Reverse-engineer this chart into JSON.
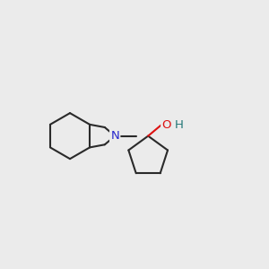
{
  "background_color": "#ebebeb",
  "bond_color": "#2a2a2a",
  "N_color": "#2626cc",
  "O_color": "#dd1111",
  "H_color": "#227777",
  "bond_width": 1.5,
  "xlim": [
    0,
    10
  ],
  "ylim": [
    1,
    9
  ]
}
